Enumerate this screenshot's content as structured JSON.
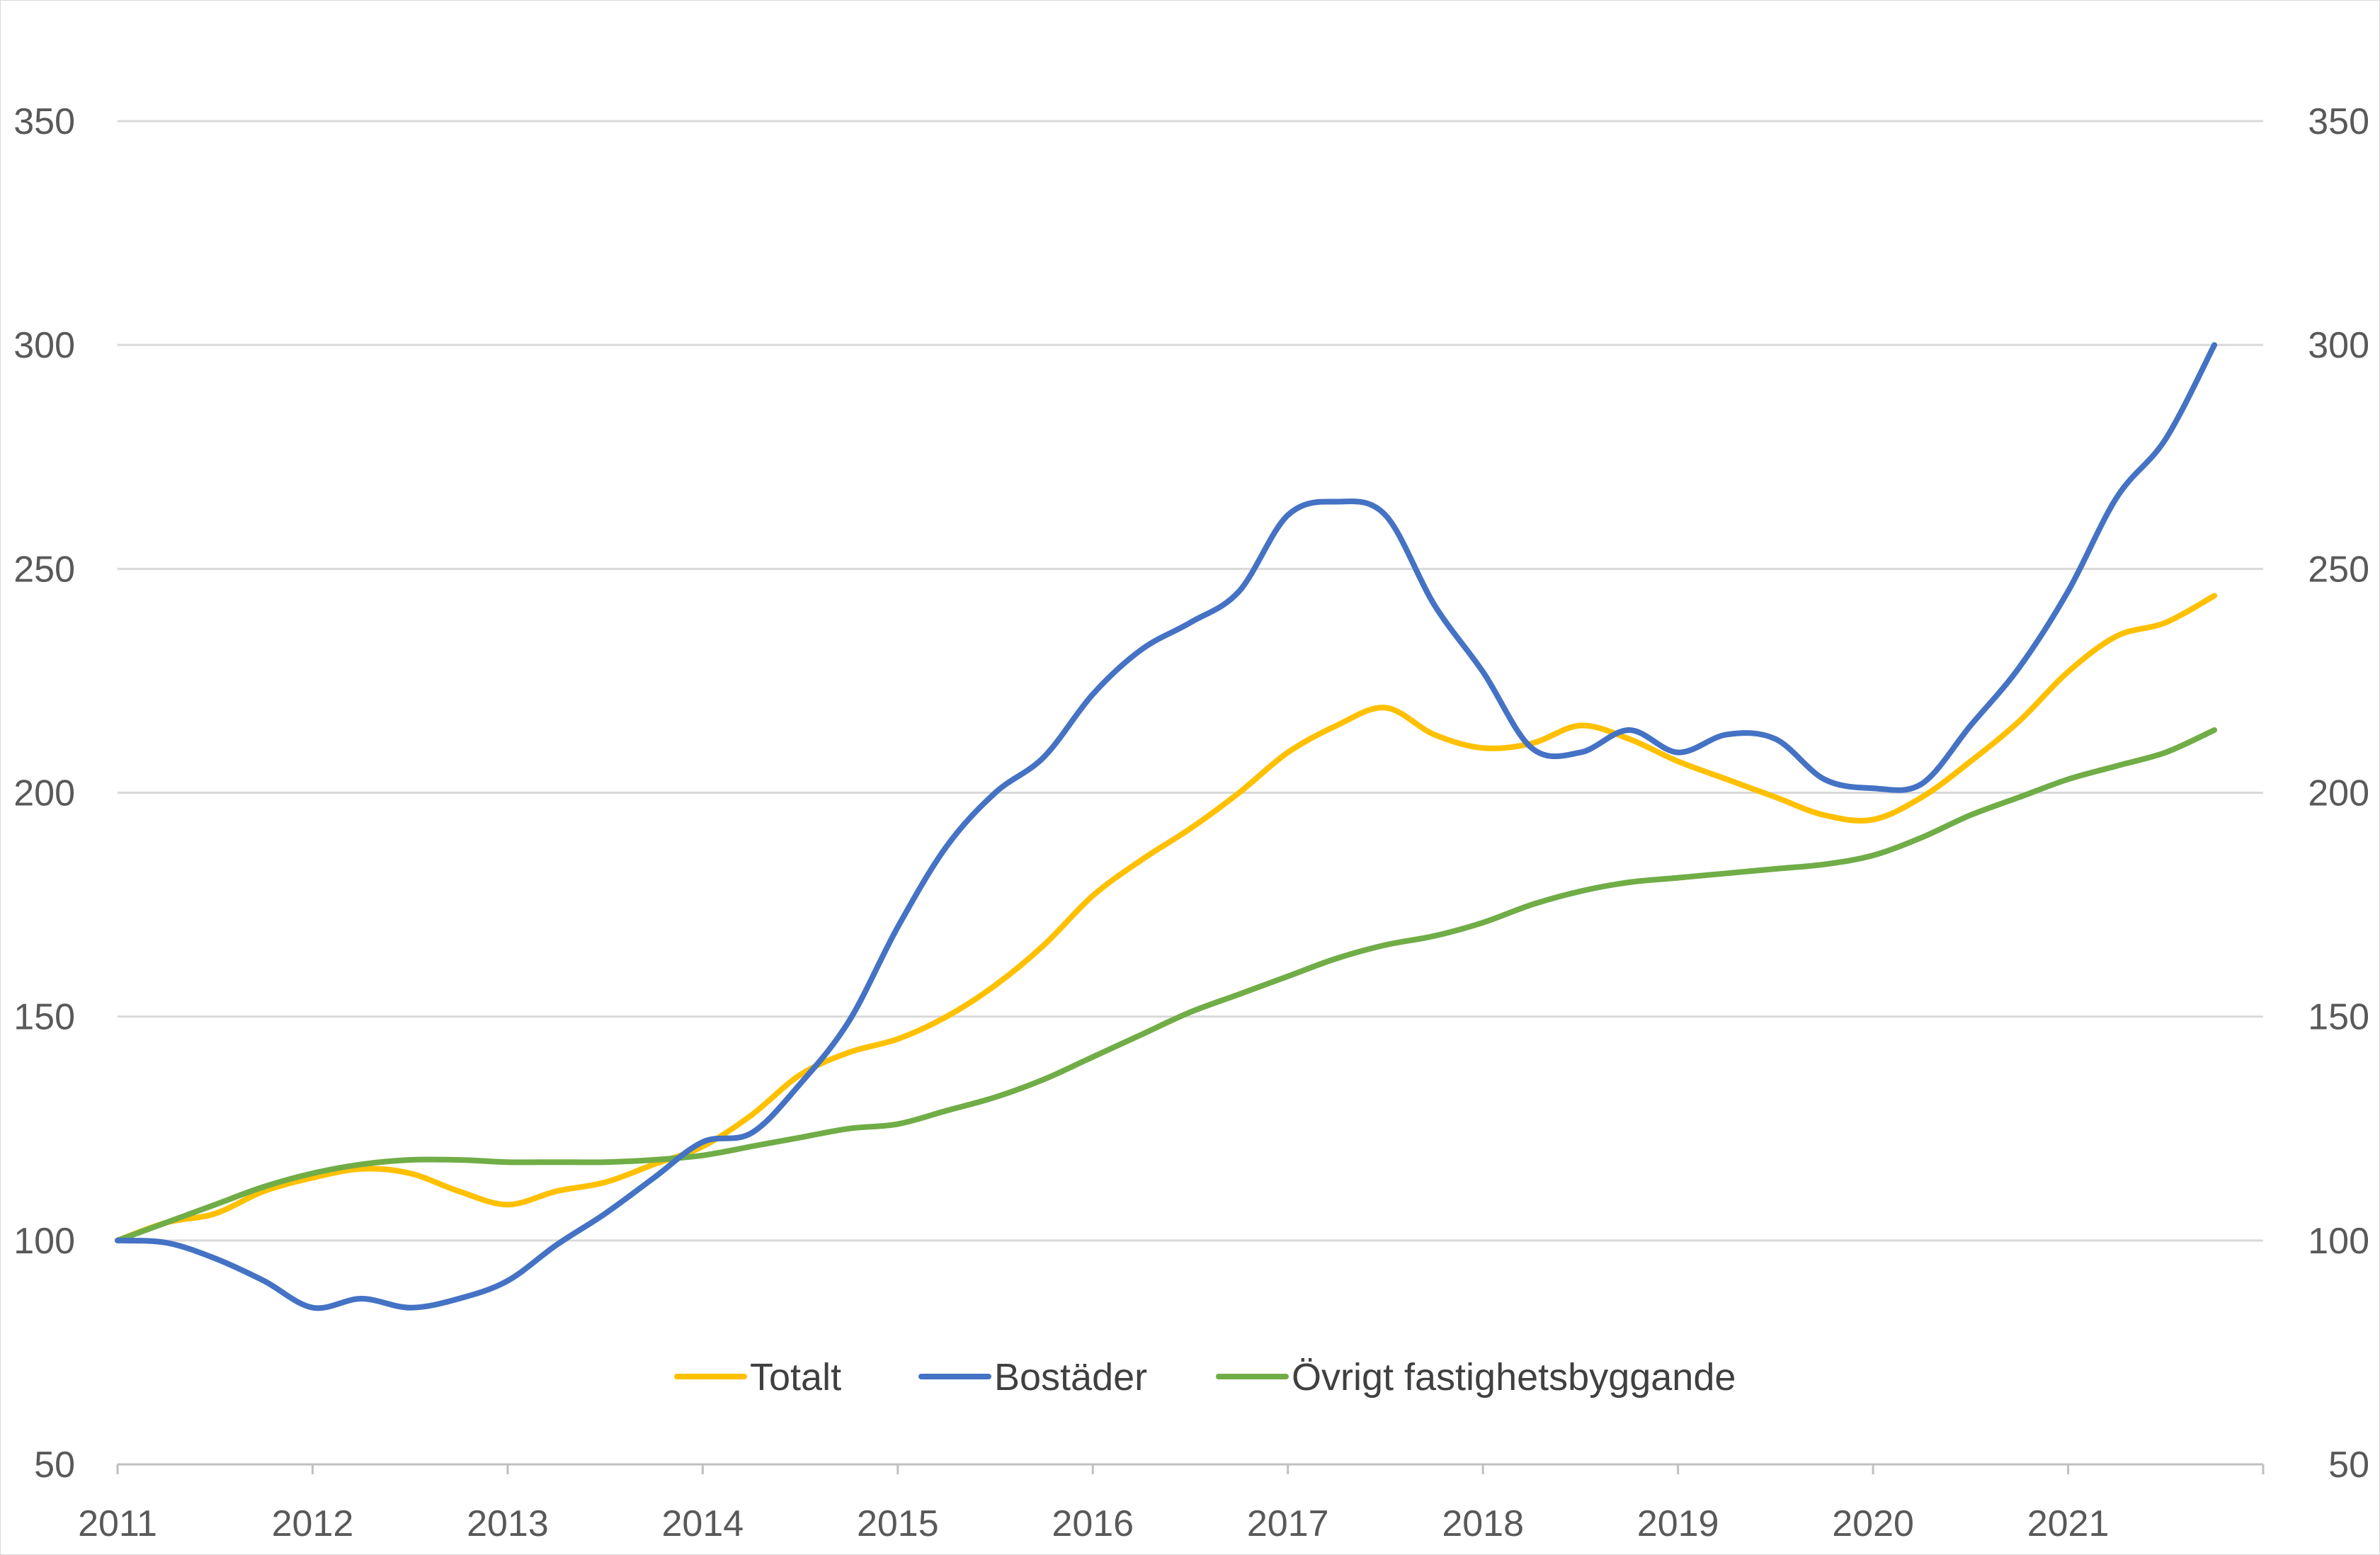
{
  "chart_data": {
    "type": "line",
    "title": "",
    "xlabel": "",
    "ylabel": "",
    "ylim": [
      50,
      350
    ],
    "xlim": [
      2011,
      2022
    ],
    "y_ticks": [
      50,
      100,
      150,
      200,
      250,
      300,
      350
    ],
    "x_ticks": [
      "2011",
      "2012",
      "2013",
      "2014",
      "2015",
      "2016",
      "2017",
      "2018",
      "2019",
      "2020",
      "2021"
    ],
    "grid": "horizontal",
    "legend_position": "bottom-inside",
    "x": [
      2011,
      2011.25,
      2011.5,
      2011.75,
      2012,
      2012.25,
      2012.5,
      2012.75,
      2013,
      2013.25,
      2013.5,
      2013.75,
      2014,
      2014.25,
      2014.5,
      2014.75,
      2015,
      2015.25,
      2015.5,
      2015.75,
      2016,
      2016.25,
      2016.5,
      2016.75,
      2017,
      2017.25,
      2017.5,
      2017.75,
      2018,
      2018.25,
      2018.5,
      2018.75,
      2019,
      2019.25,
      2019.5,
      2019.75,
      2020,
      2020.25,
      2020.5,
      2020.75,
      2021,
      2021.25,
      2021.5,
      2021.75
    ],
    "series": [
      {
        "name": "Totalt",
        "color": "#FFC000",
        "values": [
          100,
          104,
          106,
          111,
          114,
          116,
          115,
          111,
          108,
          111,
          113,
          117,
          121,
          128,
          137,
          142,
          145,
          150,
          157,
          166,
          177,
          185,
          192,
          200,
          209,
          215,
          219,
          213,
          210,
          211,
          215,
          212,
          207,
          203,
          199,
          195,
          194,
          199,
          207,
          216,
          227,
          235,
          238,
          244
        ]
      },
      {
        "name": "Bostäder",
        "color": "#4472C4",
        "values": [
          100,
          99.5,
          96,
          91,
          85,
          87,
          85,
          87,
          91,
          99,
          106,
          114,
          122,
          124,
          135,
          149,
          170,
          188,
          200,
          208,
          222,
          232,
          238,
          245,
          262,
          265,
          262,
          242,
          227,
          210,
          209,
          214,
          209,
          213,
          212,
          203,
          201,
          202,
          215,
          228,
          245,
          266,
          279,
          300
        ]
      },
      {
        "name": "Övrigt fastighetsbyggande",
        "color": "#70AD47",
        "values": [
          100,
          104,
          108,
          112,
          115,
          117,
          118,
          118,
          117.5,
          117.5,
          117.5,
          118,
          119,
          121,
          123,
          125,
          126,
          129,
          132,
          136,
          141,
          146,
          151,
          155,
          159,
          163,
          166,
          168,
          171,
          175,
          178,
          180,
          181,
          182,
          183,
          184,
          186,
          190,
          195,
          199,
          203,
          206,
          209,
          214
        ]
      }
    ]
  }
}
